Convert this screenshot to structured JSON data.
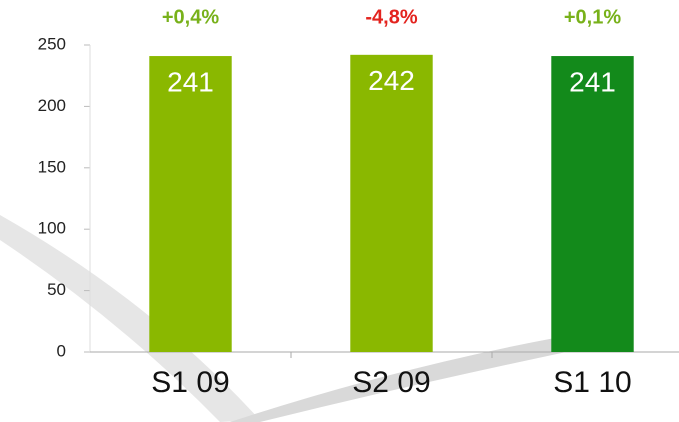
{
  "chart_data": {
    "type": "bar",
    "categories": [
      "S1 09",
      "S2 09",
      "S1 10"
    ],
    "values": [
      241,
      242,
      241
    ],
    "colors": [
      "#8ab800",
      "#8ab800",
      "#138a1b"
    ],
    "annotations": [
      {
        "text": "+0,4%",
        "color": "#78b11a"
      },
      {
        "text": "-4,8%",
        "color": "#e3231e"
      },
      {
        "text": "+0,1%",
        "color": "#78b11a"
      }
    ],
    "ylim": [
      0,
      250
    ],
    "yticks": [
      0,
      50,
      100,
      150,
      200,
      250
    ]
  }
}
